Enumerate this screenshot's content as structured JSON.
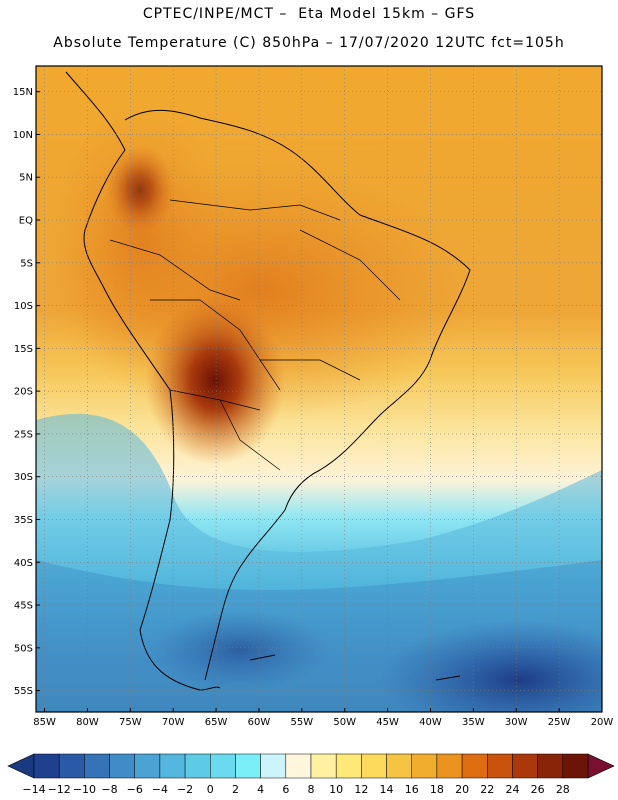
{
  "header": {
    "title_line1": "CPTEC/INPE/MCT –  Eta Model 15km – GFS",
    "title_line2": "Absolute Temperature (C) 850hPa – 17/07/2020 12UTC fct=105h"
  },
  "map": {
    "lat_labels": [
      "15N",
      "10N",
      "5N",
      "EQ",
      "5S",
      "10S",
      "15S",
      "20S",
      "25S",
      "30S",
      "35S",
      "40S",
      "45S",
      "50S",
      "55S"
    ],
    "lon_labels": [
      "85W",
      "80W",
      "75W",
      "70W",
      "65W",
      "60W",
      "55W",
      "50W",
      "45W",
      "40W",
      "35W",
      "30W",
      "25W",
      "20W"
    ]
  },
  "colorbar": {
    "labels": [
      "-14",
      "-12",
      "-10",
      "-8",
      "-6",
      "-4",
      "-2",
      "0",
      "2",
      "4",
      "6",
      "8",
      "10",
      "12",
      "14",
      "16",
      "18",
      "20",
      "22",
      "24",
      "26",
      "28"
    ],
    "colors": [
      "#1f3f8f",
      "#2a5aa6",
      "#3573b7",
      "#3f8cc6",
      "#4aa3d2",
      "#54b8de",
      "#5ecbe6",
      "#6adbee",
      "#7aeff7",
      "#cdf4fa",
      "#fff7dd",
      "#fef2a2",
      "#fde878",
      "#fbd95a",
      "#f6c443",
      "#f1ad2d",
      "#eb931f",
      "#de6d12",
      "#c9520c",
      "#ab380a",
      "#8a2408",
      "#6d1408"
    ],
    "low_color": "#1a3a80",
    "high_color": "#7a1030"
  }
}
